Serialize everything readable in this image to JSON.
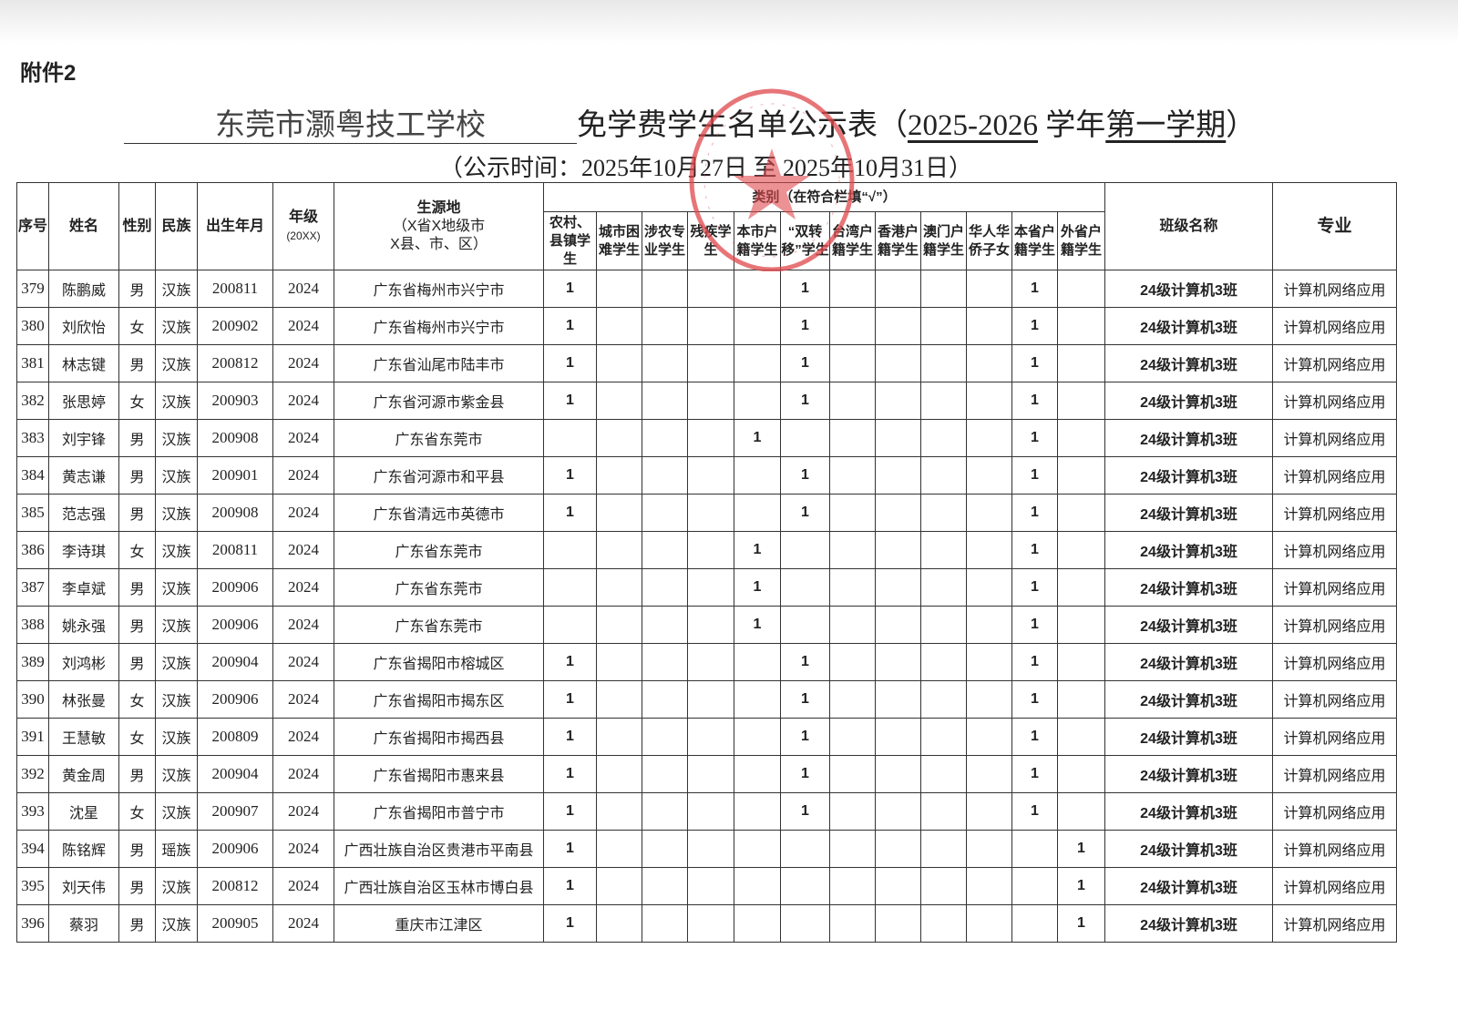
{
  "attachment_label": "附件2",
  "title": {
    "school": "东莞市灏粤技工学校",
    "main": "免学费学生名单公示表（",
    "year": "2025-2026",
    "year_suffix": " 学年",
    "term": "第一学期",
    "close": "）"
  },
  "subtitle": "（公示时间：2025年10月27日 至 2025年10月31日）",
  "stamp": {
    "text": "东莞市灏粤技工学校",
    "color": "#e0474c"
  },
  "headers": {
    "seq": "序号",
    "name": "姓名",
    "gender": "性别",
    "ethnicity": "民族",
    "birth": "出生年月",
    "grade": "年级",
    "grade_note": "(20XX)",
    "origin": "生源地",
    "origin_note1": "（X省X地级市",
    "origin_note2": "X县、市、区）",
    "category": "类别（在符合栏填“√”）",
    "categories": [
      "农村、县镇学生",
      "城市困难学生",
      "涉农专业学生",
      "残疾学生",
      "本市户籍学生",
      "“双转移”学生",
      "台湾户籍学生",
      "香港户籍学生",
      "澳门户籍学生",
      "华人华侨子女",
      "本省户籍学生",
      "外省户籍学生"
    ],
    "class": "班级名称",
    "major": "专业"
  },
  "rows": [
    {
      "seq": "379",
      "name": "陈鹏威",
      "gender": "男",
      "ethnicity": "汉族",
      "birth": "200811",
      "grade": "2024",
      "origin": "广东省梅州市兴宁市",
      "flags": [
        "1",
        "",
        "",
        "",
        "",
        "1",
        "",
        "",
        "",
        "",
        "1",
        ""
      ],
      "class": "24级计算机3班",
      "major": "计算机网络应用"
    },
    {
      "seq": "380",
      "name": "刘欣怡",
      "gender": "女",
      "ethnicity": "汉族",
      "birth": "200902",
      "grade": "2024",
      "origin": "广东省梅州市兴宁市",
      "flags": [
        "1",
        "",
        "",
        "",
        "",
        "1",
        "",
        "",
        "",
        "",
        "1",
        ""
      ],
      "class": "24级计算机3班",
      "major": "计算机网络应用"
    },
    {
      "seq": "381",
      "name": "林志键",
      "gender": "男",
      "ethnicity": "汉族",
      "birth": "200812",
      "grade": "2024",
      "origin": "广东省汕尾市陆丰市",
      "flags": [
        "1",
        "",
        "",
        "",
        "",
        "1",
        "",
        "",
        "",
        "",
        "1",
        ""
      ],
      "class": "24级计算机3班",
      "major": "计算机网络应用"
    },
    {
      "seq": "382",
      "name": "张思婷",
      "gender": "女",
      "ethnicity": "汉族",
      "birth": "200903",
      "grade": "2024",
      "origin": "广东省河源市紫金县",
      "flags": [
        "1",
        "",
        "",
        "",
        "",
        "1",
        "",
        "",
        "",
        "",
        "1",
        ""
      ],
      "class": "24级计算机3班",
      "major": "计算机网络应用"
    },
    {
      "seq": "383",
      "name": "刘宇锋",
      "gender": "男",
      "ethnicity": "汉族",
      "birth": "200908",
      "grade": "2024",
      "origin": "广东省东莞市",
      "flags": [
        "",
        "",
        "",
        "",
        "1",
        "",
        "",
        "",
        "",
        "",
        "1",
        ""
      ],
      "class": "24级计算机3班",
      "major": "计算机网络应用"
    },
    {
      "seq": "384",
      "name": "黄志谦",
      "gender": "男",
      "ethnicity": "汉族",
      "birth": "200901",
      "grade": "2024",
      "origin": "广东省河源市和平县",
      "flags": [
        "1",
        "",
        "",
        "",
        "",
        "1",
        "",
        "",
        "",
        "",
        "1",
        ""
      ],
      "class": "24级计算机3班",
      "major": "计算机网络应用"
    },
    {
      "seq": "385",
      "name": "范志强",
      "gender": "男",
      "ethnicity": "汉族",
      "birth": "200908",
      "grade": "2024",
      "origin": "广东省清远市英德市",
      "flags": [
        "1",
        "",
        "",
        "",
        "",
        "1",
        "",
        "",
        "",
        "",
        "1",
        ""
      ],
      "class": "24级计算机3班",
      "major": "计算机网络应用"
    },
    {
      "seq": "386",
      "name": "李诗琪",
      "gender": "女",
      "ethnicity": "汉族",
      "birth": "200811",
      "grade": "2024",
      "origin": "广东省东莞市",
      "flags": [
        "",
        "",
        "",
        "",
        "1",
        "",
        "",
        "",
        "",
        "",
        "1",
        ""
      ],
      "class": "24级计算机3班",
      "major": "计算机网络应用"
    },
    {
      "seq": "387",
      "name": "李卓斌",
      "gender": "男",
      "ethnicity": "汉族",
      "birth": "200906",
      "grade": "2024",
      "origin": "广东省东莞市",
      "flags": [
        "",
        "",
        "",
        "",
        "1",
        "",
        "",
        "",
        "",
        "",
        "1",
        ""
      ],
      "class": "24级计算机3班",
      "major": "计算机网络应用"
    },
    {
      "seq": "388",
      "name": "姚永强",
      "gender": "男",
      "ethnicity": "汉族",
      "birth": "200906",
      "grade": "2024",
      "origin": "广东省东莞市",
      "flags": [
        "",
        "",
        "",
        "",
        "1",
        "",
        "",
        "",
        "",
        "",
        "1",
        ""
      ],
      "class": "24级计算机3班",
      "major": "计算机网络应用"
    },
    {
      "seq": "389",
      "name": "刘鸿彬",
      "gender": "男",
      "ethnicity": "汉族",
      "birth": "200904",
      "grade": "2024",
      "origin": "广东省揭阳市榕城区",
      "flags": [
        "1",
        "",
        "",
        "",
        "",
        "1",
        "",
        "",
        "",
        "",
        "1",
        ""
      ],
      "class": "24级计算机3班",
      "major": "计算机网络应用"
    },
    {
      "seq": "390",
      "name": "林张曼",
      "gender": "女",
      "ethnicity": "汉族",
      "birth": "200906",
      "grade": "2024",
      "origin": "广东省揭阳市揭东区",
      "flags": [
        "1",
        "",
        "",
        "",
        "",
        "1",
        "",
        "",
        "",
        "",
        "1",
        ""
      ],
      "class": "24级计算机3班",
      "major": "计算机网络应用"
    },
    {
      "seq": "391",
      "name": "王慧敏",
      "gender": "女",
      "ethnicity": "汉族",
      "birth": "200809",
      "grade": "2024",
      "origin": "广东省揭阳市揭西县",
      "flags": [
        "1",
        "",
        "",
        "",
        "",
        "1",
        "",
        "",
        "",
        "",
        "1",
        ""
      ],
      "class": "24级计算机3班",
      "major": "计算机网络应用"
    },
    {
      "seq": "392",
      "name": "黄金周",
      "gender": "男",
      "ethnicity": "汉族",
      "birth": "200904",
      "grade": "2024",
      "origin": "广东省揭阳市惠来县",
      "flags": [
        "1",
        "",
        "",
        "",
        "",
        "1",
        "",
        "",
        "",
        "",
        "1",
        ""
      ],
      "class": "24级计算机3班",
      "major": "计算机网络应用"
    },
    {
      "seq": "393",
      "name": "沈星",
      "gender": "女",
      "ethnicity": "汉族",
      "birth": "200907",
      "grade": "2024",
      "origin": "广东省揭阳市普宁市",
      "flags": [
        "1",
        "",
        "",
        "",
        "",
        "1",
        "",
        "",
        "",
        "",
        "1",
        ""
      ],
      "class": "24级计算机3班",
      "major": "计算机网络应用"
    },
    {
      "seq": "394",
      "name": "陈铭辉",
      "gender": "男",
      "ethnicity": "瑶族",
      "birth": "200906",
      "grade": "2024",
      "origin": "广西壮族自治区贵港市平南县",
      "flags": [
        "1",
        "",
        "",
        "",
        "",
        "",
        "",
        "",
        "",
        "",
        "",
        "1"
      ],
      "class": "24级计算机3班",
      "major": "计算机网络应用"
    },
    {
      "seq": "395",
      "name": "刘天伟",
      "gender": "男",
      "ethnicity": "汉族",
      "birth": "200812",
      "grade": "2024",
      "origin": "广西壮族自治区玉林市博白县",
      "flags": [
        "1",
        "",
        "",
        "",
        "",
        "",
        "",
        "",
        "",
        "",
        "",
        "1"
      ],
      "class": "24级计算机3班",
      "major": "计算机网络应用"
    },
    {
      "seq": "396",
      "name": "蔡羽",
      "gender": "男",
      "ethnicity": "汉族",
      "birth": "200905",
      "grade": "2024",
      "origin": "重庆市江津区",
      "flags": [
        "1",
        "",
        "",
        "",
        "",
        "",
        "",
        "",
        "",
        "",
        "",
        "1"
      ],
      "class": "24级计算机3班",
      "major": "计算机网络应用"
    }
  ]
}
